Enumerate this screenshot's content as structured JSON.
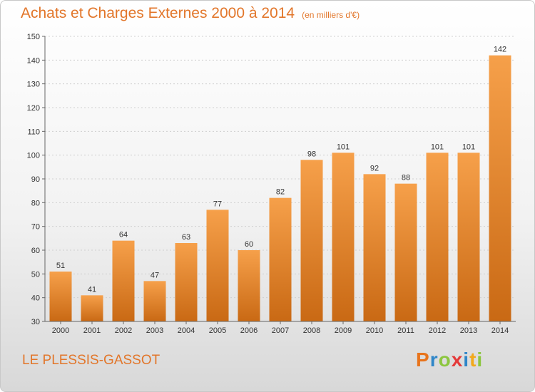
{
  "title": "Achats et Charges Externes 2000 à 2014",
  "subtitle": "(en milliers d'€)",
  "town": "LE PLESSIS-GASSOT",
  "logo": {
    "letters": [
      "P",
      "r",
      "o",
      "x",
      "i",
      "t",
      "i"
    ],
    "colors": [
      "#e8741c",
      "#2f86c8",
      "#8cc63f",
      "#e43a3a",
      "#2f86c8",
      "#f2a91c",
      "#8cc63f"
    ]
  },
  "colors": {
    "accent": "#e2762a",
    "bar_top": "#f6a04a",
    "bar_bottom": "#c96914"
  },
  "chart_data": {
    "type": "bar",
    "categories": [
      "2000",
      "2001",
      "2002",
      "2003",
      "2004",
      "2005",
      "2006",
      "2007",
      "2008",
      "2009",
      "2010",
      "2011",
      "2012",
      "2013",
      "2014"
    ],
    "values": [
      51,
      41,
      64,
      47,
      63,
      77,
      60,
      82,
      98,
      101,
      92,
      88,
      101,
      101,
      142
    ],
    "ylim": [
      30,
      150
    ],
    "yticks": [
      30,
      40,
      50,
      60,
      70,
      80,
      90,
      100,
      110,
      120,
      130,
      140,
      150
    ],
    "grid": true
  }
}
